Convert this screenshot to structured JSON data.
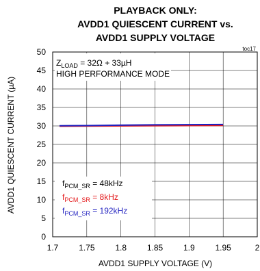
{
  "chart_data": {
    "type": "line",
    "title_lines": [
      "PLAYBACK ONLY:",
      "AVDD1 QUIESCENT CURRENT vs.",
      "AVDD1 SUPPLY VOLTAGE"
    ],
    "figure_ref": "toc17",
    "xlabel": "AVDD1 SUPPLY VOLTAGE (V)",
    "ylabel": "AVDD1 QUIESCENT CURRENT (µA)",
    "xlim": [
      1.7,
      2.0
    ],
    "ylim": [
      0,
      50
    ],
    "x_ticks": [
      1.7,
      1.75,
      1.8,
      1.85,
      1.9,
      1.95,
      2.0
    ],
    "x_tick_labels": [
      "1.7",
      "1.75",
      "1.8",
      "1.85",
      "1.9",
      "1.95",
      "2"
    ],
    "y_ticks": [
      0,
      5,
      10,
      15,
      20,
      25,
      30,
      35,
      40,
      45,
      50
    ],
    "y_tick_labels": [
      "0",
      "5",
      "10",
      "15",
      "20",
      "25",
      "30",
      "35",
      "40",
      "45",
      "50"
    ],
    "grid": true,
    "conditions": {
      "zload_prefix": "Z",
      "zload_sub": "LOAD",
      "zload_value": " = 32Ω + 33µH",
      "mode": "HIGH PERFORMANCE MODE"
    },
    "series": [
      {
        "label_prefix": "f",
        "label_sub": "PCM_SR",
        "label_value": " = 48kHz",
        "color": "#000000",
        "x": [
          1.71,
          1.75,
          1.8,
          1.85,
          1.9,
          1.95
        ],
        "y": [
          30.0,
          30.05,
          30.1,
          30.15,
          30.2,
          30.25
        ]
      },
      {
        "label_prefix": "f",
        "label_sub": "PCM_SR",
        "label_value": " = 8kHz",
        "color": "#e41a1c",
        "x": [
          1.71,
          1.75,
          1.8,
          1.85,
          1.9,
          1.95
        ],
        "y": [
          29.9,
          29.95,
          30.0,
          30.05,
          30.1,
          30.15
        ]
      },
      {
        "label_prefix": "f",
        "label_sub": "PCM_SR",
        "label_value": " = 192kHz",
        "color": "#1f1fbf",
        "x": [
          1.71,
          1.75,
          1.8,
          1.85,
          1.9,
          1.95
        ],
        "y": [
          30.05,
          30.1,
          30.2,
          30.3,
          30.35,
          30.4
        ]
      }
    ]
  }
}
